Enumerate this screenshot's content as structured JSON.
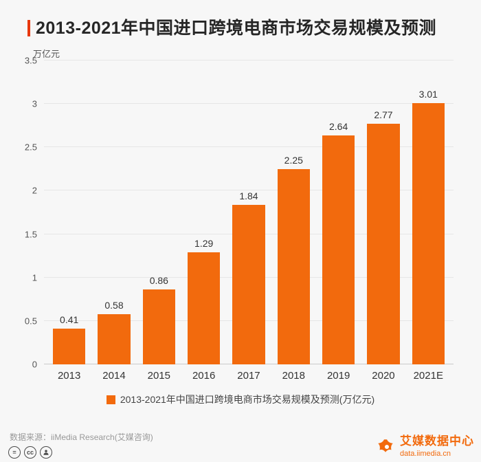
{
  "title": "2013-2021年中国进口跨境电商市场交易规模及预测",
  "colors": {
    "background": "#f7f7f7",
    "bar": "#f26a0d",
    "accent": "#e8380d",
    "brand": "#f26a0d"
  },
  "chart_data": {
    "type": "bar",
    "title": "2013-2021年中国进口跨境电商市场交易规模及预测",
    "unit_label": "万亿元",
    "categories": [
      "2013",
      "2014",
      "2015",
      "2016",
      "2017",
      "2018",
      "2019",
      "2020",
      "2021E"
    ],
    "values": [
      0.41,
      0.58,
      0.86,
      1.29,
      1.84,
      2.25,
      2.64,
      2.77,
      3.01
    ],
    "ylim": [
      0,
      3.5
    ],
    "yticks": [
      "0",
      "0.5",
      "1",
      "1.5",
      "2",
      "2.5",
      "3",
      "3.5"
    ],
    "grid": true,
    "legend": {
      "position": "bottom",
      "label": "2013-2021年中国进口跨境电商市场交易规模及预测(万亿元)"
    }
  },
  "footer": {
    "source": "数据来源：iiMedia Research(艾媒咨询)",
    "cc_equals": "=",
    "cc_cc": "cc",
    "brand_name": "艾媒数据中心",
    "brand_url": "data.iimedia.cn"
  }
}
